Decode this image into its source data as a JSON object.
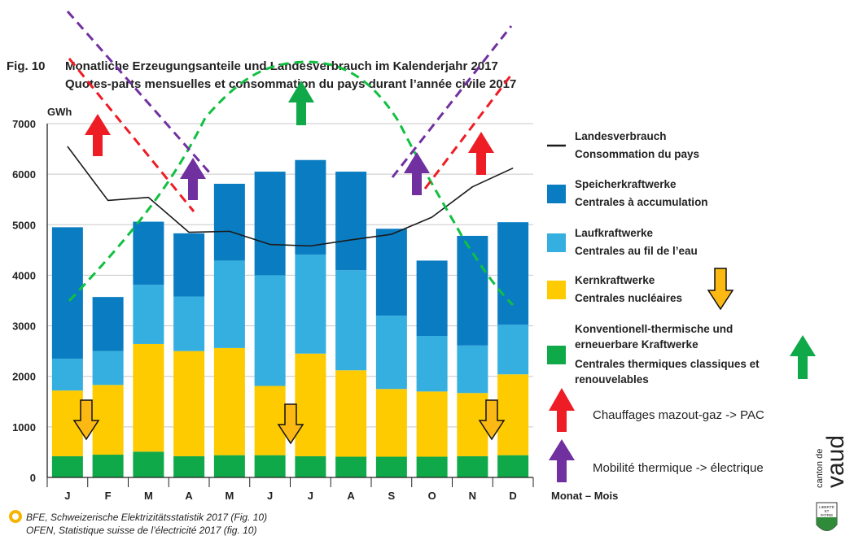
{
  "header": {
    "fig_label": "Fig. 10",
    "title_de": "Monatliche Erzeugungsanteile und Landesverbrauch im Kalenderjahr 2017",
    "title_fr": "Quotes-parts mensuelles et consommation du pays durant l’année civile 2017"
  },
  "chart_data": {
    "type": "bar",
    "stacked": true,
    "ylabel": "GWh",
    "xlabel": "Monat – Mois",
    "ylim": [
      0,
      7000
    ],
    "yticks": [
      "0",
      "1000",
      "2000",
      "3000",
      "4000",
      "5000",
      "6000",
      "7000"
    ],
    "categories": [
      "J",
      "F",
      "M",
      "A",
      "M",
      "J",
      "J",
      "A",
      "S",
      "O",
      "N",
      "D"
    ],
    "grid": "horizontal",
    "legend_position": "right",
    "series": [
      {
        "name": "Konventionell-thermische und erneuerbare Kraftwerke / Centrales thermiques classiques et renouvelables",
        "color": "#10a94a",
        "values": [
          420,
          450,
          510,
          420,
          440,
          440,
          420,
          410,
          410,
          410,
          420,
          440
        ]
      },
      {
        "name": "Kernkraftwerke / Centrales nucléaires",
        "color": "#fdcb00",
        "values": [
          1300,
          1380,
          2130,
          2080,
          2120,
          1370,
          2030,
          1710,
          1340,
          1290,
          1250,
          1600
        ]
      },
      {
        "name": "Laufkraftwerke / Centrales au fil de l’eau",
        "color": "#35afdf",
        "values": [
          630,
          670,
          1170,
          1080,
          1730,
          2190,
          1960,
          1980,
          1450,
          1100,
          940,
          980
        ]
      },
      {
        "name": "Speicherkraftwerke / Centrales à accumulation",
        "color": "#0a7dc2",
        "values": [
          2600,
          1070,
          1250,
          1250,
          1520,
          2050,
          1870,
          1950,
          1720,
          1490,
          2170,
          2030
        ]
      }
    ],
    "line_series": {
      "name": "Landesverbrauch / Consommation du pays",
      "color": "#1a1a1a",
      "values": [
        6550,
        5480,
        5540,
        4850,
        4870,
        4610,
        4580,
        4700,
        4810,
        5150,
        5750,
        6120
      ]
    }
  },
  "legend": [
    {
      "key": "line",
      "color": "#1a1a1a",
      "line1": "Landesverbrauch",
      "line2": "Consommation du pays"
    },
    {
      "key": "storage",
      "color": "#0a7dc2",
      "line1": "Speicherkraftwerke",
      "line2": "Centrales à accumulation"
    },
    {
      "key": "runofriver",
      "color": "#35afdf",
      "line1": "Laufkraftwerke",
      "line2": "Centrales au fil de l’eau"
    },
    {
      "key": "nuclear",
      "color": "#fdcb00",
      "line1": "Kernkraftwerke",
      "line2": "Centrales nucléaires"
    },
    {
      "key": "thermal",
      "color": "#10a94a",
      "line1": "Konventionell-thermische und",
      "line2": "erneuerbare Kraftwerke",
      "line3": "Centrales thermiques classiques et",
      "line4": "renouvelables"
    }
  ],
  "notes": {
    "heating": "Chauffages mazout-gaz -> PAC",
    "mobility": "Mobilité thermique -> électrique"
  },
  "colors": {
    "red_arrow": "#ee1c25",
    "purple_arrow": "#7030a0",
    "green_arrow": "#10a94a",
    "yellow_arrow": "#fdb913"
  },
  "source": {
    "line1": "BFE, Schweizerische Elektrizitätsstatistik 2017 (Fig. 10)",
    "line2": "OFEN, Statistique suisse de l’électricité 2017 (fig. 10)"
  },
  "logo": {
    "vaud": "vaud",
    "canton": "canton de",
    "motto1": "LIBERTÉ",
    "motto2": "ET",
    "motto3": "PATRIE"
  }
}
